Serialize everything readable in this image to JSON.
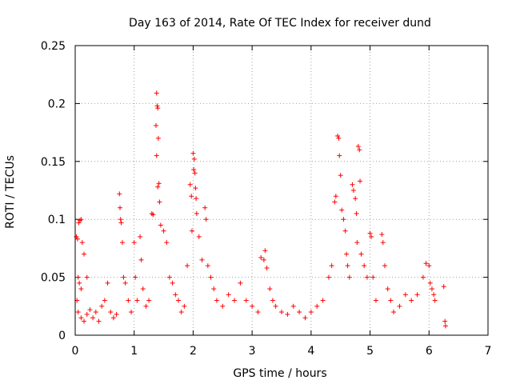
{
  "chart_data": {
    "type": "scatter",
    "title": "Day 163 of 2014, Rate Of TEC Index for receiver dund",
    "xlabel": "GPS time / hours",
    "ylabel": "ROTI / TECUs",
    "xlim": [
      0,
      7
    ],
    "ylim": [
      0,
      0.25
    ],
    "x_ticks": [
      "0",
      "1",
      "2",
      "3",
      "4",
      "5",
      "6",
      "7"
    ],
    "y_ticks": [
      "0",
      "0.05",
      "0.1",
      "0.15",
      "0.2",
      "0.25"
    ],
    "grid": true,
    "marker": "+",
    "color": "#ff0000",
    "series": [
      {
        "name": "ROTI",
        "note": "approximate representative sample of the dense point cloud read from the figure",
        "points": [
          [
            0.02,
            0.085
          ],
          [
            0.04,
            0.083
          ],
          [
            0.06,
            0.097
          ],
          [
            0.08,
            0.099
          ],
          [
            0.1,
            0.1
          ],
          [
            0.05,
            0.05
          ],
          [
            0.07,
            0.045
          ],
          [
            0.1,
            0.04
          ],
          [
            0.12,
            0.08
          ],
          [
            0.15,
            0.07
          ],
          [
            0.2,
            0.05
          ],
          [
            0.03,
            0.03
          ],
          [
            0.05,
            0.02
          ],
          [
            0.1,
            0.015
          ],
          [
            0.15,
            0.012
          ],
          [
            0.2,
            0.018
          ],
          [
            0.25,
            0.022
          ],
          [
            0.3,
            0.015
          ],
          [
            0.35,
            0.02
          ],
          [
            0.4,
            0.012
          ],
          [
            0.45,
            0.025
          ],
          [
            0.5,
            0.03
          ],
          [
            0.55,
            0.045
          ],
          [
            0.6,
            0.02
          ],
          [
            0.65,
            0.015
          ],
          [
            0.7,
            0.018
          ],
          [
            0.75,
            0.122
          ],
          [
            0.76,
            0.11
          ],
          [
            0.77,
            0.1
          ],
          [
            0.78,
            0.097
          ],
          [
            0.8,
            0.08
          ],
          [
            0.82,
            0.05
          ],
          [
            0.85,
            0.045
          ],
          [
            0.9,
            0.03
          ],
          [
            0.95,
            0.02
          ],
          [
            1.0,
            0.08
          ],
          [
            1.02,
            0.05
          ],
          [
            1.05,
            0.03
          ],
          [
            1.1,
            0.085
          ],
          [
            1.12,
            0.065
          ],
          [
            1.15,
            0.04
          ],
          [
            1.2,
            0.025
          ],
          [
            1.25,
            0.03
          ],
          [
            1.3,
            0.105
          ],
          [
            1.32,
            0.104
          ],
          [
            1.38,
            0.209
          ],
          [
            1.39,
            0.198
          ],
          [
            1.4,
            0.196
          ],
          [
            1.37,
            0.181
          ],
          [
            1.41,
            0.17
          ],
          [
            1.38,
            0.155
          ],
          [
            1.42,
            0.131
          ],
          [
            1.4,
            0.128
          ],
          [
            1.43,
            0.115
          ],
          [
            1.45,
            0.095
          ],
          [
            1.5,
            0.09
          ],
          [
            1.55,
            0.08
          ],
          [
            1.6,
            0.05
          ],
          [
            1.65,
            0.045
          ],
          [
            1.7,
            0.035
          ],
          [
            1.75,
            0.03
          ],
          [
            1.8,
            0.02
          ],
          [
            1.85,
            0.025
          ],
          [
            1.9,
            0.06
          ],
          [
            1.95,
            0.13
          ],
          [
            1.97,
            0.12
          ],
          [
            2.0,
            0.157
          ],
          [
            2.02,
            0.152
          ],
          [
            2.01,
            0.143
          ],
          [
            2.03,
            0.14
          ],
          [
            2.04,
            0.127
          ],
          [
            2.05,
            0.118
          ],
          [
            2.06,
            0.105
          ],
          [
            1.98,
            0.09
          ],
          [
            2.1,
            0.085
          ],
          [
            2.15,
            0.065
          ],
          [
            2.2,
            0.11
          ],
          [
            2.22,
            0.1
          ],
          [
            2.25,
            0.06
          ],
          [
            2.3,
            0.05
          ],
          [
            2.35,
            0.04
          ],
          [
            2.4,
            0.03
          ],
          [
            2.5,
            0.025
          ],
          [
            2.6,
            0.035
          ],
          [
            2.7,
            0.03
          ],
          [
            2.8,
            0.045
          ],
          [
            2.9,
            0.03
          ],
          [
            3.0,
            0.025
          ],
          [
            3.1,
            0.02
          ],
          [
            3.15,
            0.067
          ],
          [
            3.2,
            0.065
          ],
          [
            3.22,
            0.073
          ],
          [
            3.25,
            0.058
          ],
          [
            3.3,
            0.04
          ],
          [
            3.35,
            0.03
          ],
          [
            3.4,
            0.025
          ],
          [
            3.5,
            0.02
          ],
          [
            3.6,
            0.018
          ],
          [
            3.7,
            0.025
          ],
          [
            3.8,
            0.02
          ],
          [
            3.9,
            0.015
          ],
          [
            4.0,
            0.02
          ],
          [
            4.1,
            0.025
          ],
          [
            4.2,
            0.03
          ],
          [
            4.3,
            0.05
          ],
          [
            4.35,
            0.06
          ],
          [
            4.4,
            0.115
          ],
          [
            4.42,
            0.12
          ],
          [
            4.45,
            0.172
          ],
          [
            4.47,
            0.17
          ],
          [
            4.48,
            0.155
          ],
          [
            4.5,
            0.138
          ],
          [
            4.52,
            0.108
          ],
          [
            4.55,
            0.1
          ],
          [
            4.58,
            0.09
          ],
          [
            4.6,
            0.07
          ],
          [
            4.62,
            0.06
          ],
          [
            4.65,
            0.05
          ],
          [
            4.7,
            0.13
          ],
          [
            4.72,
            0.125
          ],
          [
            4.75,
            0.118
          ],
          [
            4.77,
            0.105
          ],
          [
            4.78,
            0.08
          ],
          [
            4.8,
            0.163
          ],
          [
            4.82,
            0.16
          ],
          [
            4.83,
            0.133
          ],
          [
            4.85,
            0.07
          ],
          [
            4.9,
            0.06
          ],
          [
            4.95,
            0.05
          ],
          [
            5.0,
            0.088
          ],
          [
            5.02,
            0.085
          ],
          [
            5.05,
            0.05
          ],
          [
            5.1,
            0.03
          ],
          [
            5.2,
            0.087
          ],
          [
            5.22,
            0.08
          ],
          [
            5.25,
            0.06
          ],
          [
            5.3,
            0.04
          ],
          [
            5.35,
            0.03
          ],
          [
            5.4,
            0.02
          ],
          [
            5.5,
            0.025
          ],
          [
            5.6,
            0.035
          ],
          [
            5.7,
            0.03
          ],
          [
            5.8,
            0.035
          ],
          [
            5.9,
            0.05
          ],
          [
            5.95,
            0.062
          ],
          [
            6.0,
            0.06
          ],
          [
            6.02,
            0.045
          ],
          [
            6.05,
            0.04
          ],
          [
            6.08,
            0.035
          ],
          [
            6.1,
            0.03
          ],
          [
            6.25,
            0.042
          ],
          [
            6.27,
            0.012
          ],
          [
            6.28,
            0.008
          ]
        ]
      }
    ]
  }
}
